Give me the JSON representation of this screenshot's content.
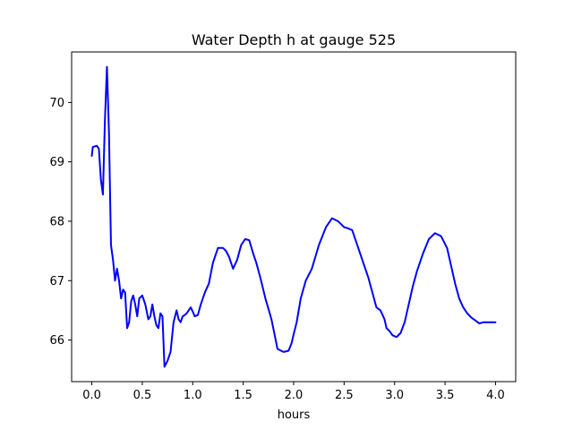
{
  "chart_data": {
    "type": "line",
    "title": "Water Depth h at gauge 525",
    "xlabel": "hours",
    "ylabel": "",
    "xlim": [
      -0.2,
      4.2
    ],
    "ylim": [
      65.3,
      70.85
    ],
    "xticks": [
      0.0,
      0.5,
      1.0,
      1.5,
      2.0,
      2.5,
      3.0,
      3.5,
      4.0
    ],
    "xtick_labels": [
      "0.0",
      "0.5",
      "1.0",
      "1.5",
      "2.0",
      "2.5",
      "3.0",
      "3.5",
      "4.0"
    ],
    "yticks": [
      66,
      67,
      68,
      69,
      70
    ],
    "ytick_labels": [
      "66",
      "67",
      "68",
      "69",
      "70"
    ],
    "grid": false,
    "colors": {
      "line": "#0000ff",
      "axes": "#000000",
      "background": "#ffffff"
    },
    "series": [
      {
        "x": [
          0.0,
          0.01,
          0.03,
          0.05,
          0.07,
          0.09,
          0.11,
          0.13,
          0.15,
          0.17,
          0.19,
          0.21,
          0.23,
          0.25,
          0.27,
          0.29,
          0.31,
          0.33,
          0.35,
          0.37,
          0.39,
          0.41,
          0.43,
          0.45,
          0.47,
          0.5,
          0.53,
          0.56,
          0.58,
          0.6,
          0.62,
          0.64,
          0.66,
          0.68,
          0.7,
          0.72,
          0.75,
          0.78,
          0.81,
          0.84,
          0.86,
          0.88,
          0.9,
          0.92,
          0.94,
          0.96,
          0.98,
          1.0,
          1.02,
          1.05,
          1.08,
          1.12,
          1.16,
          1.2,
          1.25,
          1.3,
          1.33,
          1.36,
          1.4,
          1.44,
          1.48,
          1.52,
          1.56,
          1.6,
          1.63,
          1.67,
          1.72,
          1.78,
          1.84,
          1.9,
          1.95,
          1.98,
          2.0,
          2.03,
          2.07,
          2.12,
          2.18,
          2.25,
          2.32,
          2.38,
          2.44,
          2.5,
          2.54,
          2.58,
          2.62,
          2.66,
          2.7,
          2.74,
          2.78,
          2.82,
          2.86,
          2.9,
          2.92,
          2.95,
          2.98,
          3.02,
          3.06,
          3.1,
          3.14,
          3.18,
          3.22,
          3.28,
          3.34,
          3.4,
          3.46,
          3.52,
          3.56,
          3.6,
          3.64,
          3.68,
          3.72,
          3.76,
          3.8,
          3.84,
          3.88,
          3.92,
          3.96,
          4.0
        ],
        "y": [
          69.1,
          69.25,
          69.26,
          69.27,
          69.22,
          68.7,
          68.45,
          69.7,
          70.6,
          69.5,
          67.6,
          67.35,
          67.0,
          67.2,
          67.0,
          66.7,
          66.85,
          66.8,
          66.2,
          66.3,
          66.65,
          66.75,
          66.6,
          66.4,
          66.7,
          66.75,
          66.6,
          66.35,
          66.4,
          66.6,
          66.4,
          66.25,
          66.2,
          66.45,
          66.4,
          65.55,
          65.65,
          65.8,
          66.3,
          66.5,
          66.35,
          66.3,
          66.4,
          66.42,
          66.45,
          66.5,
          66.55,
          66.48,
          66.4,
          66.42,
          66.6,
          66.8,
          66.95,
          67.3,
          67.55,
          67.55,
          67.5,
          67.4,
          67.2,
          67.35,
          67.6,
          67.7,
          67.68,
          67.45,
          67.3,
          67.05,
          66.7,
          66.35,
          65.85,
          65.8,
          65.82,
          65.95,
          66.1,
          66.3,
          66.7,
          67.0,
          67.2,
          67.6,
          67.9,
          68.05,
          68.0,
          67.9,
          67.88,
          67.85,
          67.65,
          67.45,
          67.25,
          67.05,
          66.8,
          66.55,
          66.5,
          66.35,
          66.2,
          66.15,
          66.08,
          66.05,
          66.12,
          66.3,
          66.6,
          66.9,
          67.15,
          67.45,
          67.7,
          67.8,
          67.75,
          67.55,
          67.25,
          66.95,
          66.7,
          66.55,
          66.45,
          66.38,
          66.33,
          66.28,
          66.3,
          66.3,
          66.3,
          66.3
        ]
      }
    ]
  }
}
